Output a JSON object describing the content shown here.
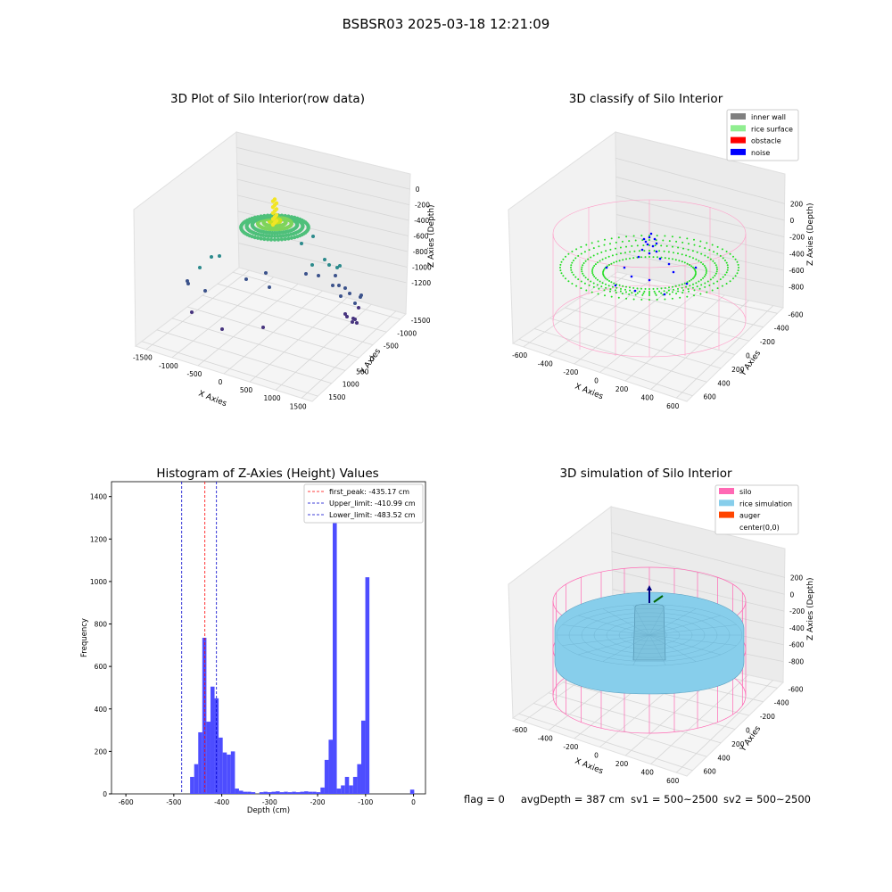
{
  "suptitle": "BSBSR03 2025-03-18 12:21:09",
  "panel1": {
    "title": "3D Plot of Silo Interior(row data)",
    "xlabel": "X Axies",
    "ylabel": "Y Axies",
    "zlabel": "Z Axies (Depth)",
    "xticks": [
      "-1500",
      "-1000",
      "-500",
      "0",
      "500",
      "1000",
      "1500"
    ],
    "yticks": [
      "1500",
      "1000",
      "500",
      "0",
      "-500",
      "-1000",
      "-1500"
    ],
    "zticks": [
      "0",
      "-200",
      "-400",
      "-600",
      "-800",
      "-1000",
      "-1200"
    ]
  },
  "panel2": {
    "title": "3D classify of Silo Interior",
    "xlabel": "X Axies",
    "ylabel": "Y Axies",
    "zlabel": "Z Axies (Depth)",
    "xticks": [
      "-600",
      "-400",
      "-200",
      "0",
      "200",
      "400",
      "600"
    ],
    "yticks": [
      "600",
      "400",
      "200",
      "0",
      "-200",
      "-400",
      "-600"
    ],
    "zticks": [
      "200",
      "0",
      "-200",
      "-400",
      "-600",
      "-800"
    ],
    "legend": [
      {
        "label": "inner wall",
        "color": "#808080"
      },
      {
        "label": "rice surface",
        "color": "#90ee90"
      },
      {
        "label": "obstacle",
        "color": "#ff0000"
      },
      {
        "label": "noise",
        "color": "#0000ff"
      }
    ]
  },
  "panel3": {
    "title": "Histogram of Z-Axies (Height) Values",
    "xlabel": "Depth (cm)",
    "ylabel": "Frequency",
    "xticks": [
      "-600",
      "-500",
      "-400",
      "-300",
      "-200",
      "-100",
      "0"
    ],
    "yticks": [
      "0",
      "200",
      "400",
      "600",
      "800",
      "1000",
      "1200",
      "1400"
    ],
    "legend": [
      {
        "label": "first_peak: -435.17 cm",
        "color": "#ff0000"
      },
      {
        "label": "Upper_limit: -410.99 cm",
        "color": "#0000cc"
      },
      {
        "label": "Lower_limit: -483.52 cm",
        "color": "#0000cc"
      }
    ]
  },
  "panel4": {
    "title": "3D simulation of Silo Interior",
    "xlabel": "X Axies",
    "ylabel": "Y Axies",
    "zlabel": "Z Axies (Depth)",
    "xticks": [
      "-600",
      "-400",
      "-200",
      "0",
      "200",
      "400",
      "600"
    ],
    "yticks": [
      "600",
      "400",
      "200",
      "0",
      "-200",
      "-400",
      "-600"
    ],
    "zticks": [
      "200",
      "0",
      "-200",
      "-400",
      "-600",
      "-800"
    ],
    "legend": [
      {
        "label": "silo",
        "color": "#ff69b4"
      },
      {
        "label": "rice simulation",
        "color": "#87ceeb"
      },
      {
        "label": "auger",
        "color": "#ff4500"
      },
      {
        "label": "center(0,0)",
        "color": "#ffffff"
      }
    ]
  },
  "footer": {
    "flag": "flag = 0",
    "avg": "avgDepth = 387 cm",
    "sv1": "sv1 = 500~2500",
    "sv2": "sv2 = 500~2500"
  },
  "chart_data": [
    {
      "type": "scatter",
      "title": "3D Plot of Silo Interior(row data)",
      "xlabel": "X Axies",
      "ylabel": "Y Axies",
      "zlabel": "Z Axies (Depth)",
      "xlim": [
        -1700,
        1700
      ],
      "ylim": [
        -1700,
        1700
      ],
      "zlim": [
        -1300,
        0
      ]
    },
    {
      "type": "scatter",
      "title": "3D classify of Silo Interior",
      "xlabel": "X Axies",
      "ylabel": "Y Axies",
      "zlabel": "Z Axies (Depth)",
      "xlim": [
        -650,
        650
      ],
      "ylim": [
        -650,
        650
      ],
      "zlim": [
        -900,
        300
      ],
      "series": [
        {
          "name": "inner wall"
        },
        {
          "name": "rice surface"
        },
        {
          "name": "obstacle"
        },
        {
          "name": "noise"
        }
      ]
    },
    {
      "type": "bar",
      "title": "Histogram of Z-Axies (Height) Values",
      "xlabel": "Depth (cm)",
      "ylabel": "Frequency",
      "xlim": [
        -630,
        25
      ],
      "ylim": [
        0,
        1470
      ],
      "bin_width": 8.5,
      "bins": [
        {
          "x": -466,
          "count": 80
        },
        {
          "x": -457.5,
          "count": 140
        },
        {
          "x": -449,
          "count": 290
        },
        {
          "x": -440.5,
          "count": 735
        },
        {
          "x": -432,
          "count": 340
        },
        {
          "x": -423.5,
          "count": 505
        },
        {
          "x": -415,
          "count": 450
        },
        {
          "x": -406.5,
          "count": 265
        },
        {
          "x": -398,
          "count": 195
        },
        {
          "x": -389.5,
          "count": 185
        },
        {
          "x": -381,
          "count": 200
        },
        {
          "x": -372.5,
          "count": 25
        },
        {
          "x": -364,
          "count": 15
        },
        {
          "x": -355.5,
          "count": 10
        },
        {
          "x": -347,
          "count": 10
        },
        {
          "x": -338.5,
          "count": 8
        },
        {
          "x": -321.5,
          "count": 8
        },
        {
          "x": -313,
          "count": 10
        },
        {
          "x": -304.5,
          "count": 8
        },
        {
          "x": -296,
          "count": 10
        },
        {
          "x": -287.5,
          "count": 12
        },
        {
          "x": -279,
          "count": 8
        },
        {
          "x": -270.5,
          "count": 10
        },
        {
          "x": -262,
          "count": 8
        },
        {
          "x": -253.5,
          "count": 10
        },
        {
          "x": -245,
          "count": 8
        },
        {
          "x": -236.5,
          "count": 10
        },
        {
          "x": -228,
          "count": 12
        },
        {
          "x": -219.5,
          "count": 10
        },
        {
          "x": -211,
          "count": 10
        },
        {
          "x": -202.5,
          "count": 8
        },
        {
          "x": -194,
          "count": 30
        },
        {
          "x": -185.5,
          "count": 160
        },
        {
          "x": -177,
          "count": 255
        },
        {
          "x": -168.5,
          "count": 1380
        },
        {
          "x": -160,
          "count": 25
        },
        {
          "x": -151.5,
          "count": 40
        },
        {
          "x": -143,
          "count": 80
        },
        {
          "x": -134.5,
          "count": 40
        },
        {
          "x": -126,
          "count": 80
        },
        {
          "x": -117.5,
          "count": 140
        },
        {
          "x": -109,
          "count": 345
        },
        {
          "x": -100.5,
          "count": 1020
        },
        {
          "x": -7,
          "count": 20
        }
      ],
      "vlines": [
        {
          "name": "first_peak: -435.17 cm",
          "x": -435.17,
          "color": "#ff0000"
        },
        {
          "name": "Upper_limit: -410.99 cm",
          "x": -410.99,
          "color": "#0000cc"
        },
        {
          "name": "Lower_limit: -483.52 cm",
          "x": -483.52,
          "color": "#0000cc"
        }
      ]
    },
    {
      "type": "area",
      "title": "3D simulation of Silo Interior",
      "xlabel": "X Axies",
      "ylabel": "Y Axies",
      "zlabel": "Z Axies (Depth)",
      "xlim": [
        -650,
        650
      ],
      "ylim": [
        -650,
        650
      ],
      "zlim": [
        -900,
        300
      ],
      "series": [
        {
          "name": "silo"
        },
        {
          "name": "rice simulation"
        },
        {
          "name": "auger"
        },
        {
          "name": "center(0,0)"
        }
      ]
    }
  ]
}
